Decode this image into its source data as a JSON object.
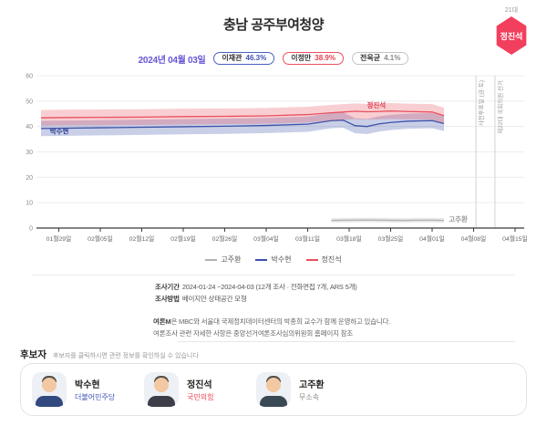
{
  "header": {
    "title": "충남 공주부여청양",
    "incumbent_term": "21대",
    "incumbent_name": "정진석",
    "badge_color": "#f23f5d"
  },
  "snapshot": {
    "date": "2024년 04월 03일",
    "date_color": "#6456d7",
    "results": [
      {
        "name": "이재관",
        "value": "46.3%",
        "color": "#3f51b5",
        "border": "#4a5fc1"
      },
      {
        "name": "이정만",
        "value": "38.9%",
        "color": "#e8414f",
        "border": "#e8505f"
      },
      {
        "name": "전옥균",
        "value": "4.1%",
        "color": "#8a8a8a",
        "border": "#c4c4c4"
      }
    ]
  },
  "chart_data": {
    "type": "line",
    "title": "",
    "xlabel": "",
    "ylabel": "",
    "x_axis": {
      "note": "day 0 = 2024-01-24",
      "tick_labels": [
        "01월29일",
        "02월05일",
        "02월12일",
        "02월19일",
        "02월26일",
        "03월04일",
        "03월11일",
        "03월18일",
        "03월25일",
        "04월01일",
        "04월08일",
        "04월15일"
      ],
      "tick_days": [
        5,
        12,
        19,
        26,
        33,
        40,
        47,
        54,
        61,
        68,
        75,
        82
      ],
      "domain_days": [
        2,
        83.5
      ]
    },
    "y_axis": {
      "ticks": [
        0,
        10,
        20,
        30,
        40,
        50,
        60
      ],
      "lim": [
        0,
        60
      ],
      "grid": true
    },
    "series": [
      {
        "name": "고주환",
        "color": "#b0b0b0",
        "label_color": "#9a9a9a",
        "band_halfwidth": 0.9,
        "label_at": {
          "day": 70.8,
          "value": 2.5
        },
        "points": [
          [
            51,
            3.0
          ],
          [
            54,
            3.1
          ],
          [
            57,
            3.2
          ],
          [
            60,
            3.1
          ],
          [
            63,
            3.0
          ],
          [
            66,
            3.1
          ],
          [
            68,
            3.1
          ],
          [
            70,
            3.0
          ]
        ]
      },
      {
        "name": "박수현",
        "color": "#3d52a8",
        "label_color": "#2e3f8f",
        "band_halfwidth": 3.0,
        "label_at": {
          "day": 3.5,
          "value": 37.2
        },
        "points": [
          [
            2,
            39.2
          ],
          [
            5,
            39.3
          ],
          [
            12,
            39.5
          ],
          [
            19,
            39.7
          ],
          [
            26,
            39.9
          ],
          [
            33,
            40.1
          ],
          [
            40,
            40.4
          ],
          [
            47,
            40.9
          ],
          [
            51,
            42.3
          ],
          [
            53,
            42.5
          ],
          [
            55,
            40.3
          ],
          [
            57,
            40.0
          ],
          [
            59,
            41.0
          ],
          [
            61,
            41.6
          ],
          [
            64,
            42.1
          ],
          [
            68,
            42.3
          ],
          [
            70,
            41.2
          ]
        ]
      },
      {
        "name": "정진석",
        "color": "#e8505f",
        "label_color": "#e03e50",
        "band_halfwidth": 3.1,
        "label_at": {
          "day": 57,
          "value": 47.4
        },
        "points": [
          [
            2,
            43.4
          ],
          [
            5,
            43.5
          ],
          [
            12,
            43.6
          ],
          [
            19,
            43.7
          ],
          [
            26,
            43.9
          ],
          [
            33,
            44.0
          ],
          [
            40,
            44.2
          ],
          [
            47,
            44.7
          ],
          [
            51,
            45.4
          ],
          [
            53,
            45.7
          ],
          [
            55,
            46.0
          ],
          [
            57,
            45.8
          ],
          [
            59,
            45.9
          ],
          [
            61,
            46.1
          ],
          [
            64,
            45.9
          ],
          [
            68,
            45.7
          ],
          [
            70,
            44.3
          ]
        ]
      }
    ],
    "event_lines": [
      {
        "label": "사전투표일 (금·토)",
        "day": 75.4
      },
      {
        "label": "제22대 국회의원 선거",
        "day": 78.6
      }
    ],
    "legend_position": "bottom"
  },
  "survey_info": {
    "items": [
      {
        "label": "조사기간",
        "text": "2024-01-24 ~2024-04-03 (12개 조사 · 전화면접 7개, ARS 5개)"
      },
      {
        "label": "조사방법",
        "text": "베이지안 상태공간 모형"
      }
    ],
    "notes": [
      {
        "bold": "여론M",
        "text": "은 MBC와 서울대 국제정치데이터센터의 박종희 교수가 함께 운영하고 있습니다."
      },
      {
        "bold": "",
        "text": "여론조사 관련 자세한 사항은 중앙선거여론조사심의위원회 홈페이지 참조"
      }
    ]
  },
  "candidates_section": {
    "heading": "후보자",
    "subtext": "후보자를 클릭하시면 관련 정보를 확인하실 수 있습니다",
    "candidates": [
      {
        "name": "박수현",
        "party": "더불어민주당",
        "party_color": "#3f51b5"
      },
      {
        "name": "정진석",
        "party": "국민의힘",
        "party_color": "#e8414f"
      },
      {
        "name": "고주환",
        "party": "무소속",
        "party_color": "#8a8a8a"
      }
    ]
  }
}
